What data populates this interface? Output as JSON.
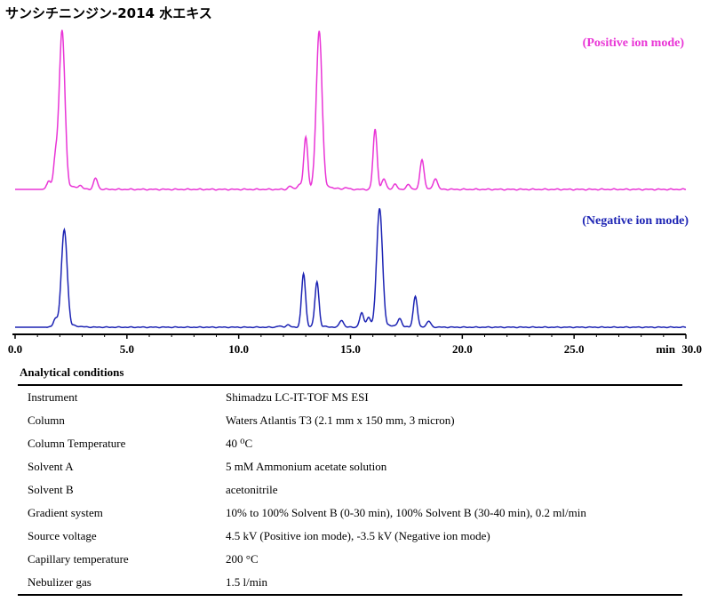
{
  "title": "サンシチニンジン-2014 水エキス",
  "chart_data": {
    "type": "line",
    "x_axis": {
      "range": [
        0.0,
        30.0
      ],
      "unit": "min",
      "tick_labels": [
        "0.0",
        "5.0",
        "10.0",
        "15.0",
        "20.0",
        "25.0",
        "30.0"
      ]
    },
    "series": [
      {
        "name": "(Positive ion mode)",
        "color": "#e935d6",
        "peaks": [
          [
            1.5,
            0.05
          ],
          [
            1.8,
            0.18
          ],
          [
            2.1,
            1.0
          ],
          [
            2.9,
            0.02
          ],
          [
            3.6,
            0.07
          ],
          [
            12.3,
            0.02
          ],
          [
            12.7,
            0.03
          ],
          [
            13.0,
            0.33
          ],
          [
            13.6,
            1.0
          ],
          [
            14.8,
            0.01
          ],
          [
            16.1,
            0.38
          ],
          [
            16.5,
            0.06
          ],
          [
            17.0,
            0.03
          ],
          [
            17.6,
            0.03
          ],
          [
            18.2,
            0.19
          ],
          [
            18.8,
            0.07
          ]
        ]
      },
      {
        "name": "(Negative ion mode)",
        "color": "#1d24b4",
        "peaks": [
          [
            1.8,
            0.07
          ],
          [
            2.2,
            0.82
          ],
          [
            11.8,
            0.01
          ],
          [
            12.2,
            0.02
          ],
          [
            12.9,
            0.45
          ],
          [
            13.5,
            0.38
          ],
          [
            14.6,
            0.06
          ],
          [
            15.5,
            0.12
          ],
          [
            15.8,
            0.08
          ],
          [
            16.3,
            1.0
          ],
          [
            17.2,
            0.07
          ],
          [
            17.9,
            0.26
          ],
          [
            18.5,
            0.05
          ]
        ]
      }
    ]
  },
  "conditions": {
    "heading": "Analytical conditions",
    "rows": [
      {
        "key": "Instrument",
        "value": "Shimadzu LC-IT-TOF MS ESI"
      },
      {
        "key": "Column",
        "value": "Waters Atlantis T3 (2.1 mm x 150 mm, 3 micron)"
      },
      {
        "key": "Column Temperature",
        "value": "40 ⁰C"
      },
      {
        "key": "Solvent A",
        "value": "5 mM Ammonium acetate solution"
      },
      {
        "key": "Solvent B",
        "value": "acetonitrile"
      },
      {
        "key": "Gradient system",
        "value": "10% to 100% Solvent B (0-30 min), 100% Solvent B (30-40 min), 0.2 ml/min"
      },
      {
        "key": "Source voltage",
        "value": "4.5 kV (Positive ion mode), -3.5 kV (Negative ion mode)"
      },
      {
        "key": "Capillary temperature",
        "value": "200 °C"
      },
      {
        "key": "Nebulizer gas",
        "value": "1.5 l/min"
      }
    ]
  }
}
